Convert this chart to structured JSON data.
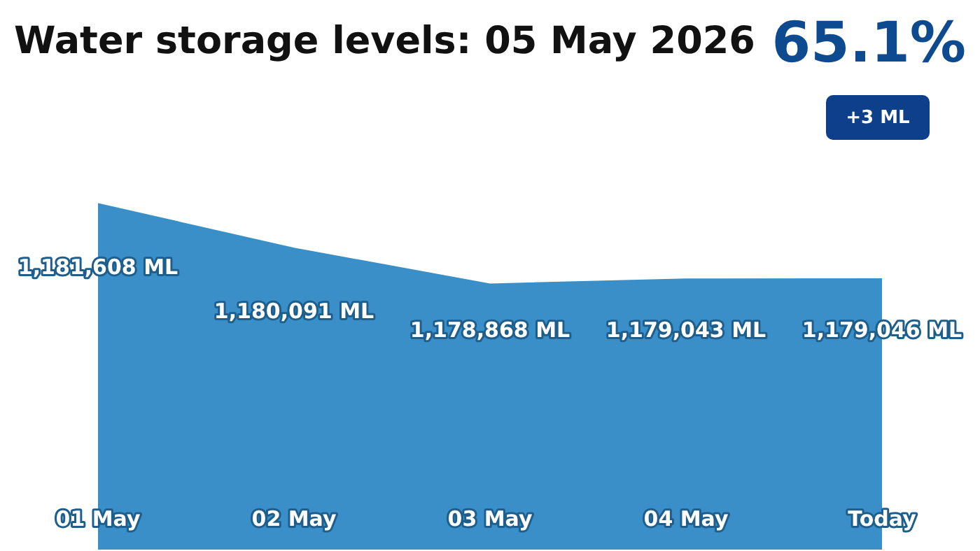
{
  "chart_data": {
    "type": "area",
    "title": "Water storage levels: 05 May 2026",
    "annotations": [
      "65.1%",
      "+3 ML"
    ],
    "categories": [
      "01 May",
      "02 May",
      "03 May",
      "04 May",
      "Today"
    ],
    "series": [
      {
        "color": "#3a8fc8",
        "values": [
          1181608,
          1180091,
          1178868,
          1179043,
          1179046
        ],
        "value_labels": [
          "1,181,608 ML",
          "1,180,091 ML",
          "1,178,868 ML",
          "1,179,043 ML",
          "1,179,046 ML"
        ]
      }
    ],
    "legend": false
  }
}
